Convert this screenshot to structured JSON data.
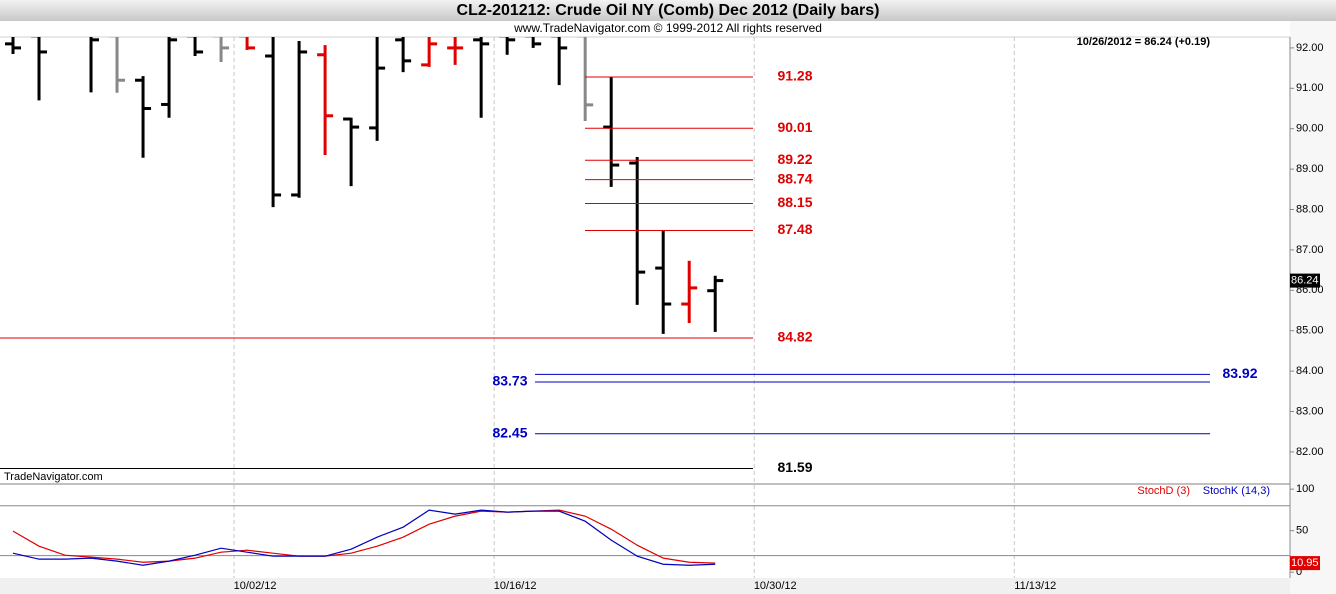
{
  "header": {
    "title": "CL2-201212:  Crude Oil NY (Comb) Dec 2012  (Daily bars)",
    "subtitle": "www.TradeNavigator.com © 1999-2012 All rights reserved",
    "quote": "10/26/2012 = 86.24 (+0.19)",
    "watermark": "TradeNavigator.com"
  },
  "chart_data": [
    {
      "type": "ohlc",
      "x": [
        0,
        1,
        2,
        3,
        4,
        5,
        6,
        7,
        8,
        9,
        10,
        11,
        12,
        13,
        14,
        15,
        16,
        17,
        18,
        19,
        20,
        21,
        22,
        23,
        24,
        25,
        26,
        27
      ],
      "open": [
        92.1,
        92.3,
        null,
        92.4,
        92.3,
        91.2,
        90.6,
        92.3,
        92.3,
        92.3,
        91.8,
        88.36,
        91.83,
        90.24,
        90.02,
        92.2,
        91.58,
        92.0,
        92.2,
        92.3,
        92.3,
        92.3,
        92.3,
        90.04,
        89.15,
        86.55,
        85.66,
        85.99
      ],
      "high": [
        92.5,
        92.6,
        null,
        92.6,
        92.6,
        91.3,
        92.5,
        92.5,
        92.5,
        92.4,
        92.5,
        92.17,
        92.07,
        90.27,
        92.5,
        92.5,
        92.3,
        92.4,
        92.3,
        92.5,
        92.5,
        92.5,
        92.5,
        91.28,
        89.3,
        87.47,
        86.73,
        86.36
      ],
      "low": [
        91.85,
        90.7,
        null,
        90.9,
        90.89,
        89.28,
        90.27,
        91.8,
        91.65,
        91.95,
        88.06,
        88.29,
        89.35,
        88.58,
        89.7,
        91.4,
        91.53,
        91.58,
        90.27,
        91.83,
        92.0,
        91.08,
        90.19,
        88.56,
        85.64,
        84.92,
        85.19,
        84.97
      ],
      "close": [
        92.0,
        91.9,
        null,
        92.2,
        91.2,
        90.5,
        92.2,
        91.9,
        92.0,
        92.0,
        88.36,
        91.9,
        90.32,
        90.04,
        91.5,
        91.68,
        92.1,
        92.0,
        92.1,
        92.2,
        92.1,
        92.0,
        90.59,
        89.1,
        86.45,
        85.66,
        86.06,
        86.24
      ],
      "colors": [
        "#000000",
        "#000000",
        null,
        "#000000",
        "#888888",
        "#000000",
        "#000000",
        "#000000",
        "#888888",
        "#e00000",
        "#000000",
        "#000000",
        "#e00000",
        "#000000",
        "#000000",
        "#000000",
        "#e00000",
        "#e00000",
        "#000000",
        "#000000",
        "#000000",
        "#000000",
        "#888888",
        "#000000",
        "#000000",
        "#000000",
        "#e00000",
        "#000000"
      ],
      "xlim": [
        -0.5,
        49.1
      ],
      "ylim": [
        81.23,
        92.27
      ],
      "yticks": [
        {
          "value": 82,
          "label": "82.00"
        },
        {
          "value": 83,
          "label": "83.00"
        },
        {
          "value": 84,
          "label": "84.00"
        },
        {
          "value": 85,
          "label": "85.00"
        },
        {
          "value": 86,
          "label": "86.00"
        },
        {
          "value": 87,
          "label": "87.00"
        },
        {
          "value": 88,
          "label": "88.00"
        },
        {
          "value": 89,
          "label": "89.00"
        },
        {
          "value": 90,
          "label": "90.00"
        },
        {
          "value": 91,
          "label": "91.00"
        },
        {
          "value": 92,
          "label": "92.00"
        }
      ],
      "levels": [
        {
          "value": 91.28,
          "color": "#e00000"
        },
        {
          "value": 90.01,
          "color": "#e00000"
        },
        {
          "value": 89.22,
          "color": "#e00000"
        },
        {
          "value": 88.74,
          "color": "#e00000"
        },
        {
          "value": 88.15,
          "color": "#e00000"
        },
        {
          "value": 87.48,
          "color": "#e00000"
        },
        {
          "value": 84.82,
          "color": "#e00000"
        },
        {
          "value": 83.92,
          "color": "#0000c0"
        },
        {
          "value": 83.73,
          "color": "#0000c0"
        },
        {
          "value": 82.45,
          "color": "#0000c0"
        },
        {
          "value": 81.59,
          "color": "#000000"
        }
      ],
      "grid": true
    },
    {
      "type": "line",
      "x": [
        0,
        1,
        2,
        3,
        4,
        5,
        6,
        7,
        8,
        9,
        10,
        11,
        12,
        13,
        14,
        15,
        16,
        17,
        18,
        19,
        20,
        21,
        22,
        23,
        24,
        25,
        26,
        27
      ],
      "series": [
        {
          "name": "StochD (3)",
          "color": "#e00000",
          "values": [
            49.4,
            31.3,
            20.5,
            18.1,
            15.7,
            12,
            13.3,
            16.9,
            24.1,
            26.5,
            22.9,
            19.3,
            19.3,
            22.9,
            31.3,
            42.2,
            57.8,
            67.5,
            73.5,
            72.3,
            73.5,
            74.7,
            67.5,
            51.8,
            32.5,
            16.9,
            12,
            10.95
          ]
        },
        {
          "name": "StochK (14,3)",
          "color": "#0000c0",
          "values": [
            22.9,
            15.7,
            15.7,
            16.9,
            13.3,
            8.4,
            13.3,
            20.5,
            28.9,
            24.1,
            19.3,
            19.3,
            19.3,
            27.7,
            42.2,
            54.2,
            74.7,
            69.9,
            74.7,
            72.3,
            73.5,
            73.5,
            61.4,
            38.6,
            19.3,
            9.6,
            8.4,
            9.6
          ]
        }
      ],
      "xlim": [
        -0.5,
        49.1
      ],
      "xticks": [
        {
          "value": 8.5,
          "label": "10/02/12"
        },
        {
          "value": 18.5,
          "label": "10/16/12"
        },
        {
          "value": 28.5,
          "label": "10/30/12"
        },
        {
          "value": 38.5,
          "label": "11/13/12"
        }
      ],
      "ylim": [
        -7,
        105
      ],
      "yticks": [
        0,
        50,
        100
      ],
      "guides": [
        20,
        80
      ],
      "grid": true
    }
  ]
}
